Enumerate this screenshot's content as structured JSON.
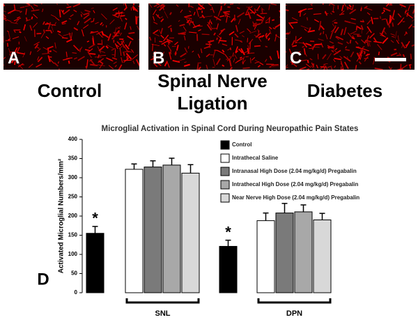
{
  "panels": [
    {
      "letter": "A",
      "label": "Control"
    },
    {
      "letter": "B",
      "label": "Spinal Nerve Ligation"
    },
    {
      "letter": "C",
      "label": "Diabetes"
    }
  ],
  "chart_letter": "D",
  "chart_data": {
    "type": "bar",
    "title": "Microglial Activation in Spinal Cord During Neuropathic Pain States",
    "y_label": "Activated Microglial Numbers/mm²",
    "categories": [
      "SNL",
      "DPN"
    ],
    "series": [
      {
        "name": "Control",
        "color": "#000000",
        "values": [
          155,
          121
        ],
        "errors": [
          18,
          16
        ]
      },
      {
        "name": "Intrathecal Saline",
        "color": "#ffffff",
        "values": [
          322,
          188
        ],
        "errors": [
          14,
          20
        ]
      },
      {
        "name": "Intranasal High Dose (2.04 mg/kg/d) Pregabalin",
        "color": "#7a7a7a",
        "values": [
          328,
          208
        ],
        "errors": [
          16,
          25
        ]
      },
      {
        "name": "Intrathecal High Dose (2.04 mg/kg/d) Pregabalin",
        "color": "#a8a8a8",
        "values": [
          333,
          211
        ],
        "errors": [
          18,
          18
        ]
      },
      {
        "name": "Near Nerve High Dose (2.04 mg/kg/d) Pregabalin",
        "color": "#d8d8d8",
        "values": [
          312,
          190
        ],
        "errors": [
          22,
          17
        ]
      }
    ],
    "annotations": [
      "*",
      "*"
    ],
    "ylim": [
      0,
      400
    ],
    "yticks": [
      0,
      50,
      100,
      150,
      200,
      250,
      300,
      350,
      400
    ],
    "grid": false
  }
}
